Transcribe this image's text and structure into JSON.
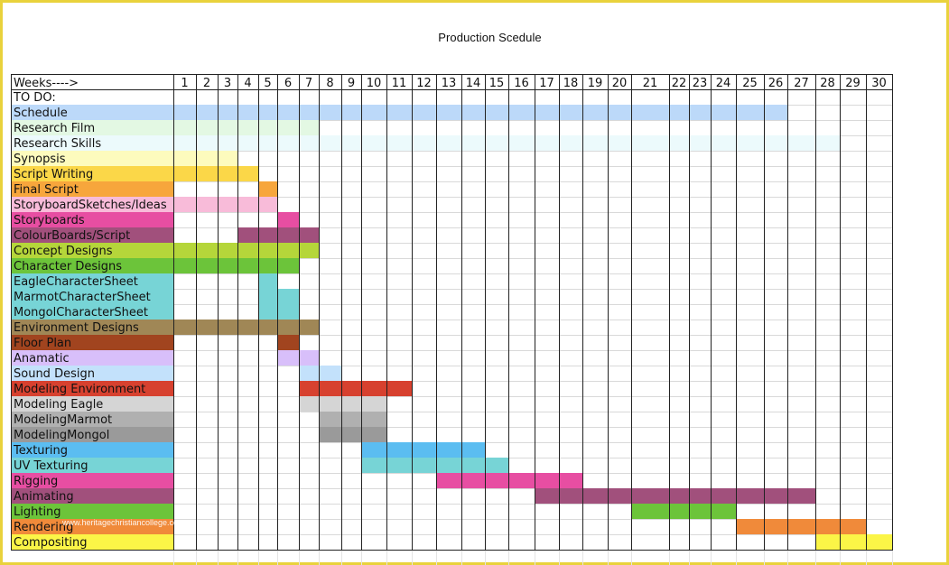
{
  "title": "Production Scedule",
  "watermark": "www.heritagechristiancollege.com",
  "chart_data": {
    "type": "table",
    "title": "Production Scedule",
    "header_label": "Weeks---->",
    "weeks": [
      1,
      2,
      3,
      4,
      5,
      6,
      7,
      8,
      9,
      10,
      11,
      12,
      13,
      14,
      15,
      16,
      17,
      18,
      19,
      20,
      21,
      22,
      23,
      24,
      25,
      26,
      27,
      28,
      29,
      30
    ],
    "tasks": [
      {
        "name": "TO DO:",
        "color": "#ffffff",
        "start": null,
        "end": null
      },
      {
        "name": "Schedule",
        "color": "#bcd9f9",
        "start": 1,
        "end": 26
      },
      {
        "name": "Research Film",
        "color": "#e3f8e3",
        "start": 1,
        "end": 7
      },
      {
        "name": "Research Skills",
        "color": "#ecfafc",
        "start": 1,
        "end": 28
      },
      {
        "name": "Synopsis",
        "color": "#fdfbbd",
        "start": 1,
        "end": 3
      },
      {
        "name": "Script Writing",
        "color": "#fbd748",
        "start": 1,
        "end": 4
      },
      {
        "name": "Final Script",
        "color": "#f7a63c",
        "start": 5,
        "end": 5
      },
      {
        "name": "StoryboardSketches/Ideas",
        "color": "#f8bbd9",
        "start": 1,
        "end": 5
      },
      {
        "name": "Storyboards",
        "color": "#e74ea2",
        "start": 6,
        "end": 6
      },
      {
        "name": "ColourBoards/Script",
        "color": "#a1507c",
        "start": 4,
        "end": 7
      },
      {
        "name": "Concept Designs",
        "color": "#b5d63a",
        "start": 1,
        "end": 7
      },
      {
        "name": "Character Designs",
        "color": "#6cc43a",
        "start": 1,
        "end": 6
      },
      {
        "name": "EagleCharacterSheet",
        "color": "#77d4d6",
        "start": 5,
        "end": 5
      },
      {
        "name": "MarmotCharacterSheet",
        "color": "#77d4d6",
        "start": 5,
        "end": 6
      },
      {
        "name": "MongolCharacterSheet",
        "color": "#77d4d6",
        "start": 5,
        "end": 6
      },
      {
        "name": "Environment Designs",
        "color": "#a08756",
        "start": 1,
        "end": 7
      },
      {
        "name": "Floor Plan",
        "color": "#a1441f",
        "start": 6,
        "end": 6
      },
      {
        "name": "Anamatic",
        "color": "#d8bffa",
        "start": 6,
        "end": 7
      },
      {
        "name": "Sound Design",
        "color": "#c3e1fb",
        "start": 7,
        "end": 8
      },
      {
        "name": "Modeling Environment",
        "color": "#d7412f",
        "start": 7,
        "end": 11
      },
      {
        "name": "Modeling Eagle",
        "color": "#d5d5d5",
        "start": 7,
        "end": 10
      },
      {
        "name": "ModelingMarmot",
        "color": "#b0b0b0",
        "start": 8,
        "end": 10
      },
      {
        "name": "ModelingMongol",
        "color": "#9a9a9a",
        "start": 8,
        "end": 10
      },
      {
        "name": "Texturing",
        "color": "#5bbdf1",
        "start": 10,
        "end": 14
      },
      {
        "name": "UV Texturing",
        "color": "#77d4d6",
        "start": 10,
        "end": 15
      },
      {
        "name": "Rigging",
        "color": "#e74ea2",
        "start": 13,
        "end": 18
      },
      {
        "name": "Animating",
        "color": "#a1507c",
        "start": 17,
        "end": 27
      },
      {
        "name": "Lighting",
        "color": "#6cc43a",
        "start": 21,
        "end": 24
      },
      {
        "name": "Rendering",
        "color": "#f08a3a",
        "start": 25,
        "end": 29
      },
      {
        "name": "Compositing",
        "color": "#fbf547",
        "start": 28,
        "end": 30
      }
    ]
  }
}
